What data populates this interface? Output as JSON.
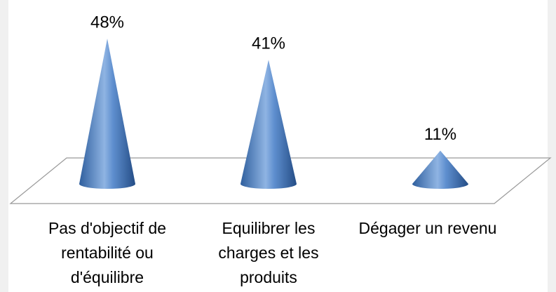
{
  "chart_data": {
    "type": "cone",
    "categories": [
      "Pas d'objectif de rentabilité ou d'équilibre",
      "Equilibrer les charges et les produits",
      "Dégager un revenu"
    ],
    "values": [
      48,
      41,
      11
    ],
    "value_labels": [
      "48%",
      "41%",
      "11%"
    ],
    "color": "#4f81bd"
  }
}
